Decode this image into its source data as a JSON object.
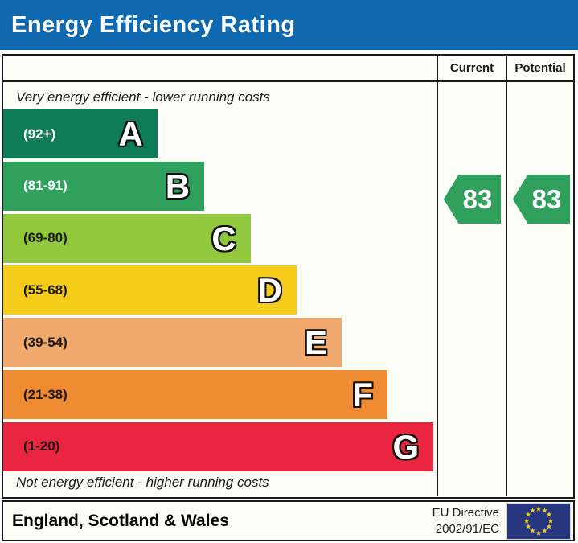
{
  "title": "Energy Efficiency Rating",
  "columns": {
    "current": "Current",
    "potential": "Potential"
  },
  "notes": {
    "top": "Very energy efficient - lower running costs",
    "bottom": "Not energy efficient - higher running costs"
  },
  "chart_data": {
    "type": "bar",
    "title": "Energy Efficiency Rating",
    "categories": [
      "A",
      "B",
      "C",
      "D",
      "E",
      "F",
      "G"
    ],
    "bands": [
      {
        "letter": "A",
        "range": "(92+)",
        "color": "#0e7c56",
        "text_color": "#ffffff",
        "width_pct": 35.6
      },
      {
        "letter": "B",
        "range": "(81-91)",
        "color": "#30a15c",
        "text_color": "#ffffff",
        "width_pct": 46.4
      },
      {
        "letter": "C",
        "range": "(69-80)",
        "color": "#92c83e",
        "text_color": "#1a1a1a",
        "width_pct": 57.1
      },
      {
        "letter": "D",
        "range": "(55-68)",
        "color": "#f6cd1b",
        "text_color": "#1a1a1a",
        "width_pct": 67.7
      },
      {
        "letter": "E",
        "range": "(39-54)",
        "color": "#f2a96d",
        "text_color": "#1a1a1a",
        "width_pct": 78.1
      },
      {
        "letter": "F",
        "range": "(21-38)",
        "color": "#ef8b33",
        "text_color": "#1a1a1a",
        "width_pct": 88.7
      },
      {
        "letter": "G",
        "range": "(1-20)",
        "color": "#e92540",
        "text_color": "#1a1a1a",
        "width_pct": 99.3
      }
    ],
    "current": {
      "value": 83,
      "band": "B",
      "arrow_color": "#30a15c"
    },
    "potential": {
      "value": 83,
      "band": "B",
      "arrow_color": "#30a15c"
    }
  },
  "footer": {
    "region": "England, Scotland & Wales",
    "directive_line1": "EU Directive",
    "directive_line2": "2002/91/EC",
    "eu_flag_icon": "eu-flag"
  },
  "colors": {
    "header_blue": "#0e69b0",
    "flag_navy": "#26367f",
    "star_yellow": "#f7d117",
    "border_black": "#1a1a1a"
  }
}
